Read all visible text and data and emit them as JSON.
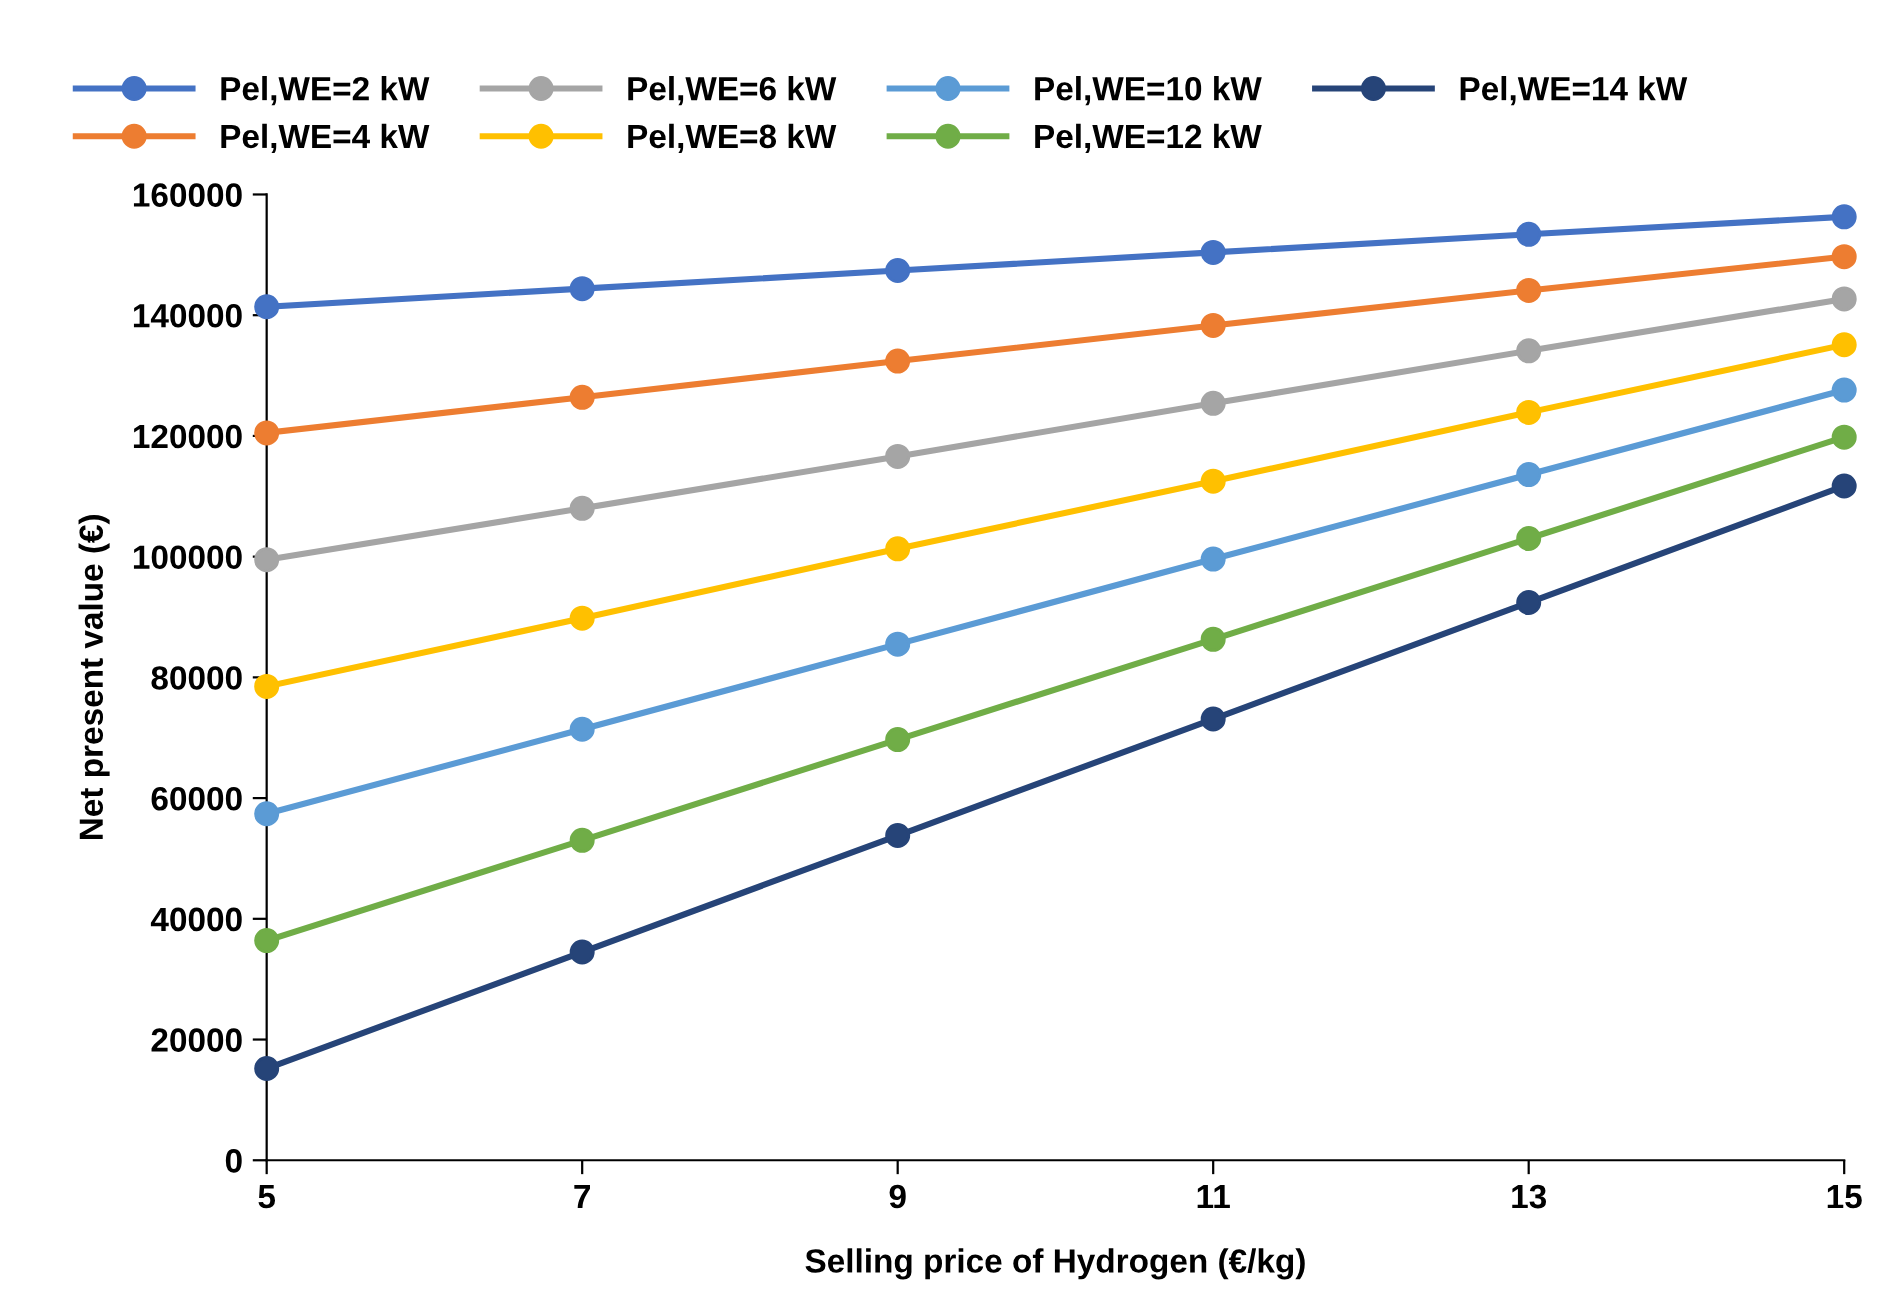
{
  "chart_data": {
    "type": "line",
    "xlabel": "Selling price of Hydrogen (€/kg)",
    "ylabel": "Net present value (€)",
    "x": [
      5,
      7,
      9,
      11,
      13,
      15
    ],
    "series": [
      {
        "name": "Pel,WE=2 kW",
        "color": "#4472c4",
        "values": [
          141400,
          144400,
          147400,
          150400,
          153400,
          156300
        ]
      },
      {
        "name": "Pel,WE=4 kW",
        "color": "#ed7d31",
        "values": [
          120500,
          126400,
          132400,
          138300,
          144100,
          149700
        ]
      },
      {
        "name": "Pel,WE=6 kW",
        "color": "#a5a5a5",
        "values": [
          99500,
          108000,
          116600,
          125400,
          134100,
          142700
        ]
      },
      {
        "name": "Pel,WE=8 kW",
        "color": "#ffc000",
        "values": [
          78500,
          89800,
          101300,
          112500,
          123900,
          135100
        ]
      },
      {
        "name": "Pel,WE=10 kW",
        "color": "#5b9bd5",
        "values": [
          57400,
          71400,
          85500,
          99600,
          113600,
          127600
        ]
      },
      {
        "name": "Pel,WE=12 kW",
        "color": "#70ad47",
        "values": [
          36400,
          53000,
          69700,
          86300,
          103000,
          119800
        ]
      },
      {
        "name": "Pel,WE=14 kW",
        "color": "#264478",
        "values": [
          15200,
          34500,
          53800,
          73100,
          92400,
          111700
        ]
      }
    ],
    "xlim": [
      5,
      15
    ],
    "xticks": [
      5,
      7,
      9,
      11,
      13,
      15
    ],
    "ylim": [
      0,
      160000
    ],
    "yticks": [
      0,
      20000,
      40000,
      60000,
      80000,
      100000,
      120000,
      140000,
      160000
    ],
    "grid": false,
    "legend": "top",
    "marker": "circle",
    "line_style": "solid"
  }
}
